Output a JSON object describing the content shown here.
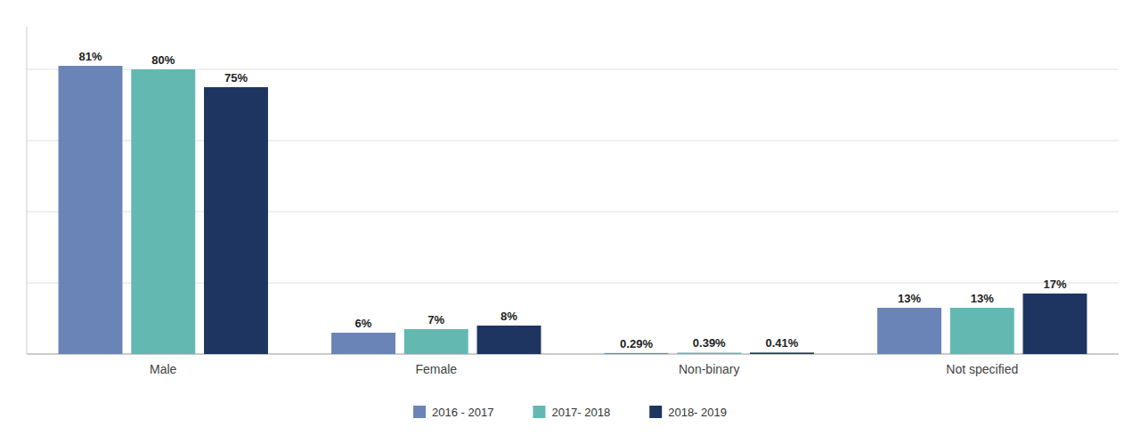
{
  "chart_data": {
    "type": "bar",
    "categories": [
      "Male",
      "Female",
      "Non-binary",
      "Not specified"
    ],
    "series": [
      {
        "name": "2016 - 2017",
        "color": "#6b84b8",
        "values": [
          81,
          6,
          0.29,
          13
        ],
        "value_labels": [
          "81%",
          "6%",
          "0.29%",
          "13%"
        ]
      },
      {
        "name": "2017- 2018",
        "color": "#63b8b2",
        "values": [
          80,
          7,
          0.39,
          13
        ],
        "value_labels": [
          "80%",
          "7%",
          "0.39%",
          "13%"
        ]
      },
      {
        "name": "2018- 2019",
        "color": "#1f3561",
        "values": [
          75,
          8,
          0.41,
          17
        ],
        "value_labels": [
          "75%",
          "8%",
          "0.41%",
          "17%"
        ]
      }
    ],
    "ylim": [
      0,
      92
    ],
    "yticks": [
      0,
      20,
      40,
      60,
      80
    ],
    "grid": true,
    "data_labels": true,
    "tick_labels": "x",
    "legend": "bottom"
  }
}
